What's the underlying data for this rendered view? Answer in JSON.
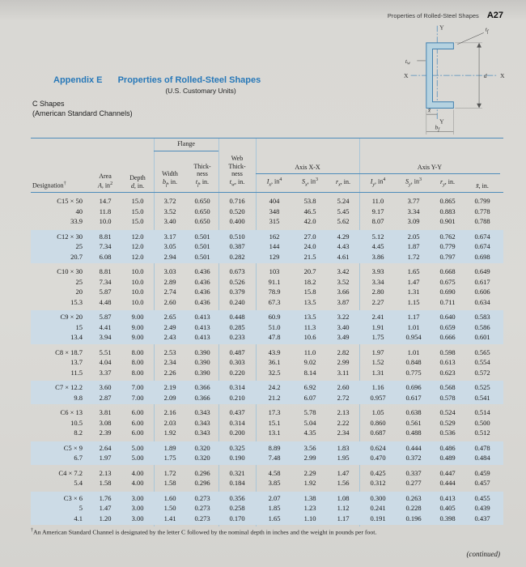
{
  "colors": {
    "accent_blue": "#2878b8",
    "rule_blue": "#4e8cba",
    "band_blue": "#ccdbe6"
  },
  "page": {
    "running_header": "Properties of Rolled-Steel Shapes",
    "page_number": "A27",
    "appendix_label": "Appendix E",
    "title": "Properties of Rolled-Steel Shapes",
    "subtitle": "(U.S. Customary Units)",
    "section": "C Shapes",
    "section_sub": "(American Standard Channels)",
    "footnote_marker": "†",
    "footnote": "An American Standard Channel is designated by the letter C followed by the nominal depth in inches and the weight in pounds per foot.",
    "continued": "(continued)"
  },
  "diagram": {
    "axis_y_top": "Y",
    "axis_y_bottom": "Y",
    "axis_x_left": "X",
    "axis_x_right": "X",
    "dim_depth": "d",
    "dim_tf": {
      "base": "t",
      "sub": "f"
    },
    "dim_tw": {
      "base": "t",
      "sub": "w"
    },
    "dim_bf": {
      "base": "b",
      "sub": "f"
    },
    "dim_xbar": "x̄"
  },
  "table": {
    "flange_header": "Flange",
    "axis_xx_header": "Axis X-X",
    "axis_yy_header": "Axis Y-Y",
    "columns": [
      {
        "id": "designation",
        "label": "Designation",
        "label_sup": "†"
      },
      {
        "id": "area",
        "lines": [
          "Area"
        ],
        "sym": {
          "b": "A",
          "s": "",
          "u": ", in",
          "p": "2"
        }
      },
      {
        "id": "depth",
        "lines": [
          "Depth"
        ],
        "sym": {
          "b": "d",
          "s": "",
          "u": ", in.",
          "p": ""
        }
      },
      {
        "id": "flange-width",
        "lines": [
          "Width"
        ],
        "sym": {
          "b": "b",
          "s": "f",
          "u": ", in.",
          "p": ""
        }
      },
      {
        "id": "flange-thickness",
        "lines": [
          "Thick-",
          "ness"
        ],
        "sym": {
          "b": "t",
          "s": "f",
          "u": ", in.",
          "p": ""
        }
      },
      {
        "id": "web-thickness",
        "lines": [
          "Web",
          "Thick-",
          "ness"
        ],
        "sym": {
          "b": "t",
          "s": "w",
          "u": ", in.",
          "p": ""
        }
      },
      {
        "id": "Ix",
        "lines": [],
        "sym": {
          "b": "I",
          "s": "x",
          "u": ", in",
          "p": "4"
        }
      },
      {
        "id": "Sx",
        "lines": [],
        "sym": {
          "b": "S",
          "s": "x",
          "u": ", in",
          "p": "3"
        }
      },
      {
        "id": "rx",
        "lines": [],
        "sym": {
          "b": "r",
          "s": "x",
          "u": ", in.",
          "p": ""
        }
      },
      {
        "id": "Iy",
        "lines": [],
        "sym": {
          "b": "I",
          "s": "y",
          "u": ", in",
          "p": "4"
        }
      },
      {
        "id": "Sy",
        "lines": [],
        "sym": {
          "b": "S",
          "s": "y",
          "u": ", in",
          "p": "3"
        }
      },
      {
        "id": "ry",
        "lines": [],
        "sym": {
          "b": "r",
          "s": "y",
          "u": ", in.",
          "p": ""
        }
      },
      {
        "id": "xbar",
        "lines": [],
        "sym": {
          "b": "x̄",
          "s": "",
          "u": ", in.",
          "p": ""
        }
      }
    ],
    "groups": [
      {
        "shaded": false,
        "rows": [
          [
            "C15 × 50",
            "14.7",
            "15.0",
            "3.72",
            "0.650",
            "0.716",
            "404",
            "53.8",
            "5.24",
            "11.0",
            "3.77",
            "0.865",
            "0.799"
          ],
          [
            "40",
            "11.8",
            "15.0",
            "3.52",
            "0.650",
            "0.520",
            "348",
            "46.5",
            "5.45",
            "9.17",
            "3.34",
            "0.883",
            "0.778"
          ],
          [
            "33.9",
            "10.0",
            "15.0",
            "3.40",
            "0.650",
            "0.400",
            "315",
            "42.0",
            "5.62",
            "8.07",
            "3.09",
            "0.901",
            "0.788"
          ]
        ]
      },
      {
        "shaded": true,
        "rows": [
          [
            "C12 × 30",
            "8.81",
            "12.0",
            "3.17",
            "0.501",
            "0.510",
            "162",
            "27.0",
            "4.29",
            "5.12",
            "2.05",
            "0.762",
            "0.674"
          ],
          [
            "25",
            "7.34",
            "12.0",
            "3.05",
            "0.501",
            "0.387",
            "144",
            "24.0",
            "4.43",
            "4.45",
            "1.87",
            "0.779",
            "0.674"
          ],
          [
            "20.7",
            "6.08",
            "12.0",
            "2.94",
            "0.501",
            "0.282",
            "129",
            "21.5",
            "4.61",
            "3.86",
            "1.72",
            "0.797",
            "0.698"
          ]
        ]
      },
      {
        "shaded": false,
        "rows": [
          [
            "C10 × 30",
            "8.81",
            "10.0",
            "3.03",
            "0.436",
            "0.673",
            "103",
            "20.7",
            "3.42",
            "3.93",
            "1.65",
            "0.668",
            "0.649"
          ],
          [
            "25",
            "7.34",
            "10.0",
            "2.89",
            "0.436",
            "0.526",
            "91.1",
            "18.2",
            "3.52",
            "3.34",
            "1.47",
            "0.675",
            "0.617"
          ],
          [
            "20",
            "5.87",
            "10.0",
            "2.74",
            "0.436",
            "0.379",
            "78.9",
            "15.8",
            "3.66",
            "2.80",
            "1.31",
            "0.690",
            "0.606"
          ],
          [
            "15.3",
            "4.48",
            "10.0",
            "2.60",
            "0.436",
            "0.240",
            "67.3",
            "13.5",
            "3.87",
            "2.27",
            "1.15",
            "0.711",
            "0.634"
          ]
        ]
      },
      {
        "shaded": true,
        "rows": [
          [
            "C9 × 20",
            "5.87",
            "9.00",
            "2.65",
            "0.413",
            "0.448",
            "60.9",
            "13.5",
            "3.22",
            "2.41",
            "1.17",
            "0.640",
            "0.583"
          ],
          [
            "15",
            "4.41",
            "9.00",
            "2.49",
            "0.413",
            "0.285",
            "51.0",
            "11.3",
            "3.40",
            "1.91",
            "1.01",
            "0.659",
            "0.586"
          ],
          [
            "13.4",
            "3.94",
            "9.00",
            "2.43",
            "0.413",
            "0.233",
            "47.8",
            "10.6",
            "3.49",
            "1.75",
            "0.954",
            "0.666",
            "0.601"
          ]
        ]
      },
      {
        "shaded": false,
        "rows": [
          [
            "C8 × 18.7",
            "5.51",
            "8.00",
            "2.53",
            "0.390",
            "0.487",
            "43.9",
            "11.0",
            "2.82",
            "1.97",
            "1.01",
            "0.598",
            "0.565"
          ],
          [
            "13.7",
            "4.04",
            "8.00",
            "2.34",
            "0.390",
            "0.303",
            "36.1",
            "9.02",
            "2.99",
            "1.52",
            "0.848",
            "0.613",
            "0.554"
          ],
          [
            "11.5",
            "3.37",
            "8.00",
            "2.26",
            "0.390",
            "0.220",
            "32.5",
            "8.14",
            "3.11",
            "1.31",
            "0.775",
            "0.623",
            "0.572"
          ]
        ]
      },
      {
        "shaded": true,
        "rows": [
          [
            "C7 × 12.2",
            "3.60",
            "7.00",
            "2.19",
            "0.366",
            "0.314",
            "24.2",
            "6.92",
            "2.60",
            "1.16",
            "0.696",
            "0.568",
            "0.525"
          ],
          [
            "9.8",
            "2.87",
            "7.00",
            "2.09",
            "0.366",
            "0.210",
            "21.2",
            "6.07",
            "2.72",
            "0.957",
            "0.617",
            "0.578",
            "0.541"
          ]
        ]
      },
      {
        "shaded": false,
        "rows": [
          [
            "C6 × 13",
            "3.81",
            "6.00",
            "2.16",
            "0.343",
            "0.437",
            "17.3",
            "5.78",
            "2.13",
            "1.05",
            "0.638",
            "0.524",
            "0.514"
          ],
          [
            "10.5",
            "3.08",
            "6.00",
            "2.03",
            "0.343",
            "0.314",
            "15.1",
            "5.04",
            "2.22",
            "0.860",
            "0.561",
            "0.529",
            "0.500"
          ],
          [
            "8.2",
            "2.39",
            "6.00",
            "1.92",
            "0.343",
            "0.200",
            "13.1",
            "4.35",
            "2.34",
            "0.687",
            "0.488",
            "0.536",
            "0.512"
          ]
        ]
      },
      {
        "shaded": true,
        "rows": [
          [
            "C5 × 9",
            "2.64",
            "5.00",
            "1.89",
            "0.320",
            "0.325",
            "8.89",
            "3.56",
            "1.83",
            "0.624",
            "0.444",
            "0.486",
            "0.478"
          ],
          [
            "6.7",
            "1.97",
            "5.00",
            "1.75",
            "0.320",
            "0.190",
            "7.48",
            "2.99",
            "1.95",
            "0.470",
            "0.372",
            "0.489",
            "0.484"
          ]
        ]
      },
      {
        "shaded": false,
        "rows": [
          [
            "C4 × 7.2",
            "2.13",
            "4.00",
            "1.72",
            "0.296",
            "0.321",
            "4.58",
            "2.29",
            "1.47",
            "0.425",
            "0.337",
            "0.447",
            "0.459"
          ],
          [
            "5.4",
            "1.58",
            "4.00",
            "1.58",
            "0.296",
            "0.184",
            "3.85",
            "1.92",
            "1.56",
            "0.312",
            "0.277",
            "0.444",
            "0.457"
          ]
        ]
      },
      {
        "shaded": true,
        "rows": [
          [
            "C3 × 6",
            "1.76",
            "3.00",
            "1.60",
            "0.273",
            "0.356",
            "2.07",
            "1.38",
            "1.08",
            "0.300",
            "0.263",
            "0.413",
            "0.455"
          ],
          [
            "5",
            "1.47",
            "3.00",
            "1.50",
            "0.273",
            "0.258",
            "1.85",
            "1.23",
            "1.12",
            "0.241",
            "0.228",
            "0.405",
            "0.439"
          ],
          [
            "4.1",
            "1.20",
            "3.00",
            "1.41",
            "0.273",
            "0.170",
            "1.65",
            "1.10",
            "1.17",
            "0.191",
            "0.196",
            "0.398",
            "0.437"
          ]
        ]
      }
    ]
  }
}
